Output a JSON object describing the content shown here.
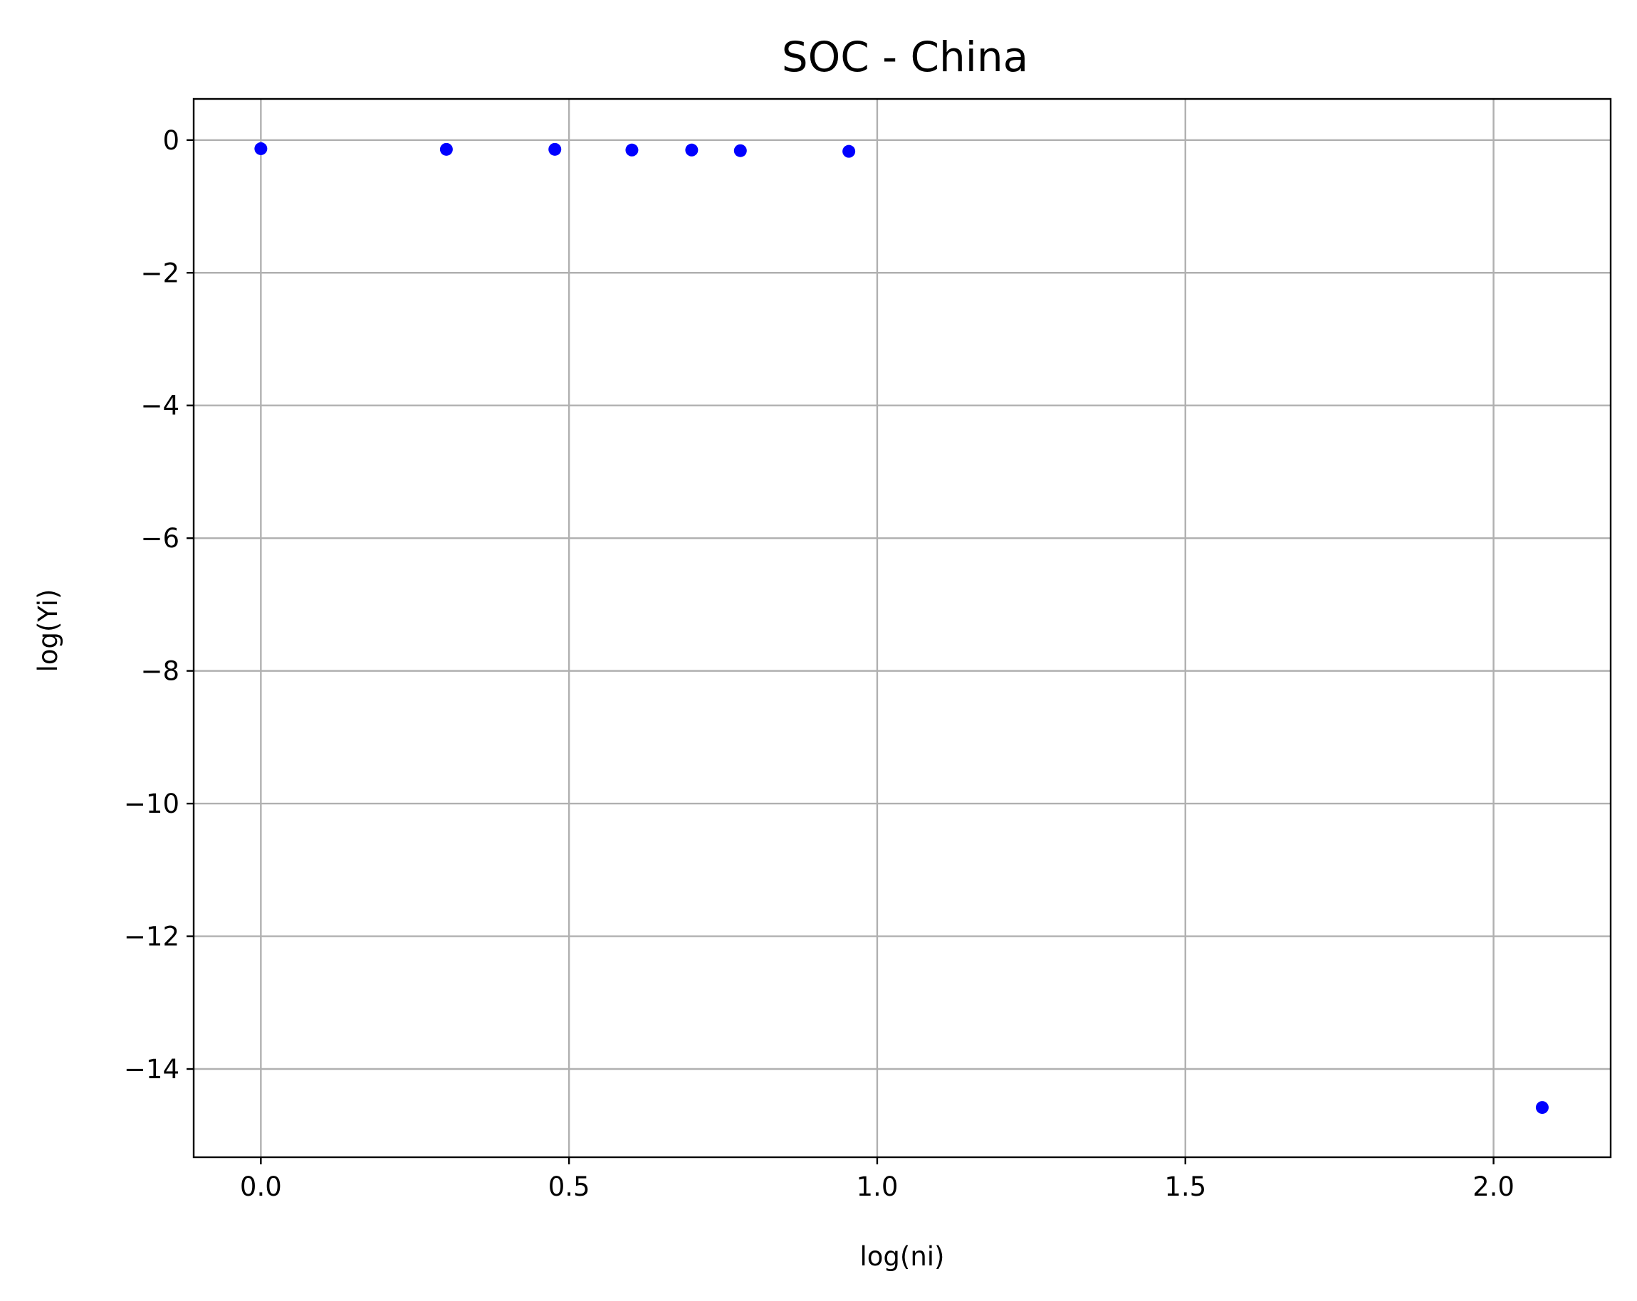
{
  "chart_data": {
    "type": "scatter",
    "title": "SOC - China",
    "xlabel": "log(ni)",
    "ylabel": "log(Yi)",
    "xlim": [
      -0.109,
      2.19
    ],
    "ylim": [
      -15.33,
      0.62
    ],
    "xticks": [
      0.0,
      0.5,
      1.0,
      1.5,
      2.0
    ],
    "xtick_labels": [
      "0.0",
      "0.5",
      "1.0",
      "1.5",
      "2.0"
    ],
    "yticks": [
      0,
      -2,
      -4,
      -6,
      -8,
      -10,
      -12,
      -14
    ],
    "ytick_labels": [
      "0",
      "−2",
      "−4",
      "−6",
      "−8",
      "−10",
      "−12",
      "−14"
    ],
    "grid": true,
    "marker_color": "#0000ff",
    "series": [
      {
        "x": [
          0.0,
          0.301,
          0.477,
          0.602,
          0.699,
          0.778,
          0.954,
          2.079
        ],
        "y": [
          -0.13,
          -0.14,
          -0.14,
          -0.15,
          -0.15,
          -0.16,
          -0.17,
          -14.58
        ]
      }
    ]
  }
}
